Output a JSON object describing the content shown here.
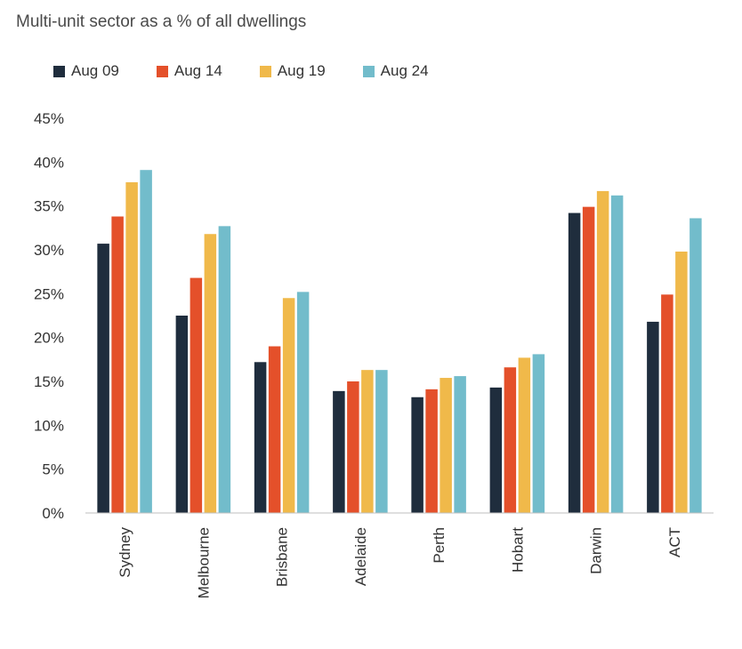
{
  "chart_data": {
    "type": "bar",
    "title": "Multi-unit sector as a % of all dwellings",
    "categories": [
      "Sydney",
      "Melbourne",
      "Brisbane",
      "Adelaide",
      "Perth",
      "Hobart",
      "Darwin",
      "ACT"
    ],
    "series": [
      {
        "name": "Aug 09",
        "color": "#1f2d3d",
        "values": [
          30.7,
          22.5,
          17.2,
          13.9,
          13.2,
          14.3,
          34.2,
          21.8
        ]
      },
      {
        "name": "Aug 14",
        "color": "#e4502a",
        "values": [
          33.8,
          26.8,
          19.0,
          15.0,
          14.1,
          16.6,
          34.9,
          24.9
        ]
      },
      {
        "name": "Aug 19",
        "color": "#f0b94a",
        "values": [
          37.7,
          31.8,
          24.5,
          16.3,
          15.4,
          17.7,
          36.7,
          29.8
        ]
      },
      {
        "name": "Aug 24",
        "color": "#72bccb",
        "values": [
          39.1,
          32.7,
          25.2,
          16.3,
          15.6,
          18.1,
          36.2,
          33.6
        ]
      }
    ],
    "yticks": [
      "0%",
      "5%",
      "10%",
      "15%",
      "20%",
      "25%",
      "30%",
      "35%",
      "40%",
      "45%"
    ],
    "ylim": [
      0,
      45
    ],
    "grid": false,
    "legend_position": "top-left"
  }
}
